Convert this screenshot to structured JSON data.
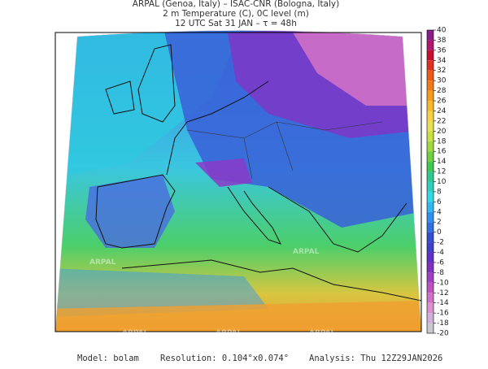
{
  "header": {
    "lines": [
      "ARPAL (Genoa, Italy)  –  ISAC-CNR (Bologna, Italy)",
      "2 m Temperature (C), 0C level (m)",
      "12 UTC Sat 31 JAN  –  τ = 48h"
    ]
  },
  "map": {
    "watermark": "ARPAL"
  },
  "colorbar": {
    "ticks": [
      40,
      38,
      36,
      34,
      32,
      30,
      28,
      26,
      24,
      22,
      20,
      18,
      16,
      14,
      12,
      10,
      8,
      6,
      4,
      2,
      0,
      -2,
      -4,
      -6,
      -8,
      -10,
      -12,
      -14,
      -16,
      -18,
      -20
    ],
    "colors": [
      "#8b1e8b",
      "#b0186f",
      "#c8102e",
      "#e0301e",
      "#ee5a1a",
      "#f07a1a",
      "#f49a1e",
      "#f8b82a",
      "#f8d040",
      "#e8e050",
      "#c8e040",
      "#a0d840",
      "#70d040",
      "#40c850",
      "#30c890",
      "#30d0c0",
      "#30d8e8",
      "#30b8f0",
      "#3090f0",
      "#3070e0",
      "#3050d0",
      "#4040c8",
      "#6030c8",
      "#8030c0",
      "#a040c0",
      "#c050c0",
      "#d070c8",
      "#e090d0",
      "#d0b0d8",
      "#c8c8d0"
    ]
  },
  "footer": {
    "model": "Model: bolam",
    "resolution": "Resolution: 0.104°x0.074°",
    "analysis": "Analysis: Thu 12Z29JAN2026"
  }
}
